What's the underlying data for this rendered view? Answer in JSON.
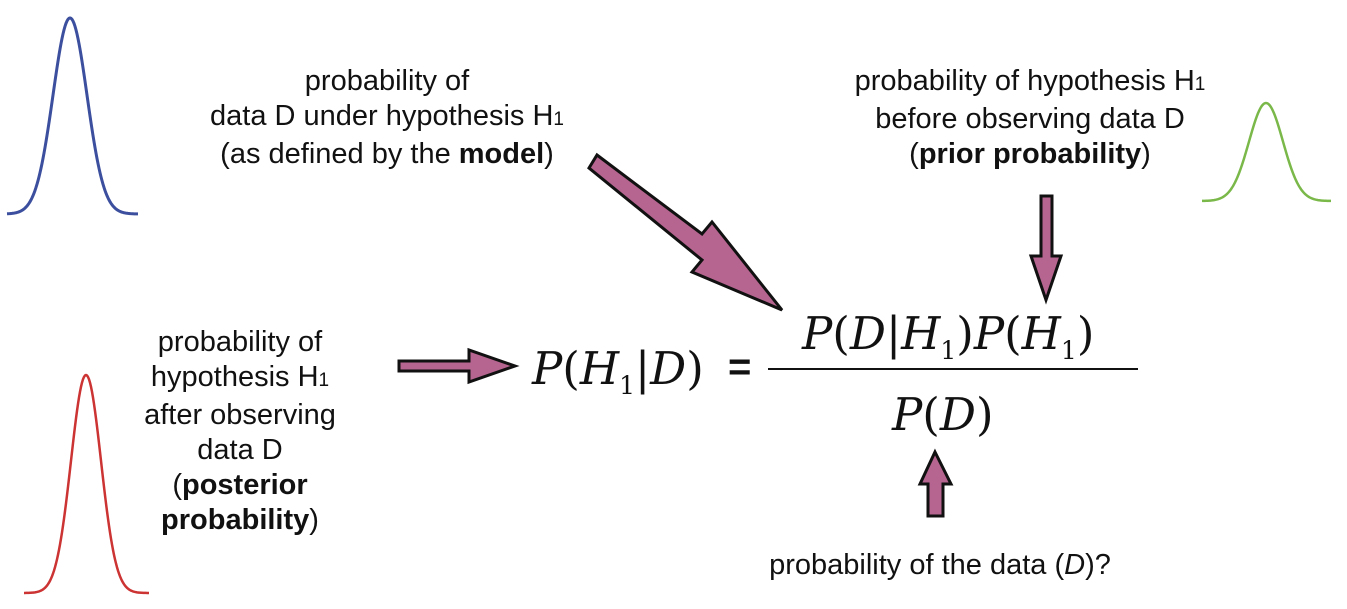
{
  "labels": {
    "likelihood": {
      "line1": "probability of",
      "line2_pre": "data D under hypothesis H",
      "line2_sub": "1",
      "line3_pre": "(as defined by the ",
      "line3_bold": "model",
      "line3_post": ")"
    },
    "prior": {
      "line1_pre": "probability of hypothesis H",
      "line1_sub": "1",
      "line2": "before observing data D",
      "line3_pre": "(",
      "line3_bold": "prior probability",
      "line3_post": ")"
    },
    "posterior": {
      "line1": "probability of",
      "line2_pre": "hypothesis H",
      "line2_sub": "1",
      "line3": "after observing",
      "line4": "data D",
      "line5_pre": "(",
      "line5_bold": "posterior",
      "line6_bold": "probability",
      "line6_post": ")"
    },
    "evidence": {
      "text_pre": "probability of the data (",
      "text_italic": "D",
      "text_post": ")?"
    }
  },
  "equation": {
    "lhs": {
      "p": "P",
      "open": "(",
      "h": "H",
      "sub": "1",
      "bar": "|",
      "d": "D",
      "close": ")"
    },
    "equals": "=",
    "numerator": {
      "p1": "P",
      "open1": "(",
      "d": "D",
      "bar": "|",
      "h1": "H",
      "sub1": "1",
      "close1": ")",
      "p2": "P",
      "open2": "(",
      "h2": "H",
      "sub2": "1",
      "close2": ")"
    },
    "denominator": {
      "p": "P",
      "open": "(",
      "d": "D",
      "close": ")"
    }
  },
  "colors": {
    "arrow_fill": "#b5658f",
    "arrow_stroke": "#111111",
    "curve_blue": "#3b4f9e",
    "curve_green": "#7ab84a",
    "curve_red": "#cc3333"
  }
}
